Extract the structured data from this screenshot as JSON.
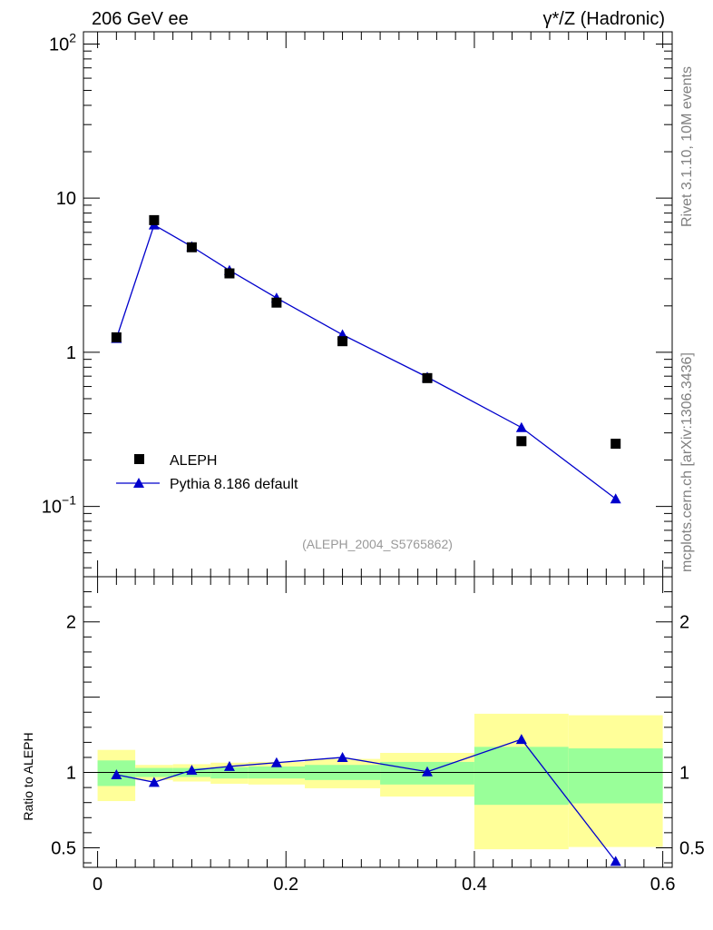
{
  "chart_data": [
    {
      "type": "scatter",
      "title_left": "206 GeV ee",
      "title_right": "γ*/Z (Hadronic)",
      "analysis_tag": "(ALEPH_2004_S5765862)",
      "side_text_top": "Rivet 3.1.10,  10M events",
      "side_text_bottom": "mcplots.cern.ch [arXiv:1306.3436]",
      "y_scale": "log",
      "xlim": [
        -0.015,
        0.61
      ],
      "ylim": [
        0.035,
        120
      ],
      "y_ticks": [
        {
          "value": 100,
          "label": "10",
          "sup": "2"
        },
        {
          "value": 10,
          "label": "10",
          "sup": ""
        },
        {
          "value": 1,
          "label": "1",
          "sup": ""
        },
        {
          "value": 0.1,
          "label": "10",
          "sup": "−1"
        }
      ],
      "legend_position": "bottom-left",
      "series": [
        {
          "name": "ALEPH",
          "marker": "square",
          "color": "#000000",
          "x": [
            0.02,
            0.06,
            0.1,
            0.14,
            0.19,
            0.26,
            0.35,
            0.45,
            0.55
          ],
          "y": [
            1.25,
            7.2,
            4.8,
            3.25,
            2.1,
            1.18,
            0.68,
            0.265,
            0.255
          ]
        },
        {
          "name": "Pythia 8.186 default",
          "marker": "triangle",
          "color": "#0000cc",
          "x": [
            0.02,
            0.06,
            0.1,
            0.14,
            0.19,
            0.26,
            0.35,
            0.45,
            0.55
          ],
          "y": [
            1.23,
            6.7,
            4.85,
            3.4,
            2.25,
            1.3,
            0.69,
            0.325,
            0.112
          ]
        }
      ]
    },
    {
      "type": "line",
      "ylabel": "Ratio to ALEPH",
      "xlim": [
        -0.015,
        0.61
      ],
      "ylim": [
        0.37,
        2.3
      ],
      "x_ticks": [
        0,
        0.2,
        0.4,
        0.6
      ],
      "x_tick_labels": [
        "0",
        "0.2",
        "0.4",
        "0.6"
      ],
      "y_ticks": [
        0.5,
        1,
        2
      ],
      "y_tick_labels": [
        "0.5",
        "1",
        "2"
      ],
      "reference_line": 1,
      "bins": [
        {
          "x0": 0.0,
          "x1": 0.04,
          "green": [
            0.91,
            1.08
          ],
          "yellow": [
            0.81,
            1.15
          ]
        },
        {
          "x0": 0.04,
          "x1": 0.08,
          "green": [
            0.97,
            1.03
          ],
          "yellow": [
            0.95,
            1.05
          ]
        },
        {
          "x0": 0.08,
          "x1": 0.12,
          "green": [
            0.97,
            1.03
          ],
          "yellow": [
            0.94,
            1.055
          ]
        },
        {
          "x0": 0.12,
          "x1": 0.16,
          "green": [
            0.96,
            1.035
          ],
          "yellow": [
            0.925,
            1.065
          ]
        },
        {
          "x0": 0.16,
          "x1": 0.22,
          "green": [
            0.96,
            1.04
          ],
          "yellow": [
            0.92,
            1.07
          ]
        },
        {
          "x0": 0.22,
          "x1": 0.3,
          "green": [
            0.95,
            1.05
          ],
          "yellow": [
            0.895,
            1.09
          ]
        },
        {
          "x0": 0.3,
          "x1": 0.4,
          "green": [
            0.92,
            1.07
          ],
          "yellow": [
            0.84,
            1.13
          ]
        },
        {
          "x0": 0.4,
          "x1": 0.5,
          "green": [
            0.785,
            1.17
          ],
          "yellow": [
            0.49,
            1.39
          ]
        },
        {
          "x0": 0.5,
          "x1": 0.6,
          "green": [
            0.795,
            1.16
          ],
          "yellow": [
            0.505,
            1.38
          ]
        }
      ],
      "series": [
        {
          "name": "Pythia 8.186 default",
          "marker": "triangle",
          "color": "#0000cc",
          "x": [
            0.02,
            0.06,
            0.1,
            0.14,
            0.19,
            0.26,
            0.35,
            0.45,
            0.55
          ],
          "y": [
            0.985,
            0.935,
            1.015,
            1.04,
            1.065,
            1.1,
            1.005,
            1.22,
            0.41
          ]
        }
      ]
    }
  ],
  "colors": {
    "band_inner": "#99ff99",
    "band_outer": "#ffff99",
    "mc": "#0000cc",
    "data": "#000000",
    "side_text": "#808080",
    "tag_text": "#999999"
  }
}
